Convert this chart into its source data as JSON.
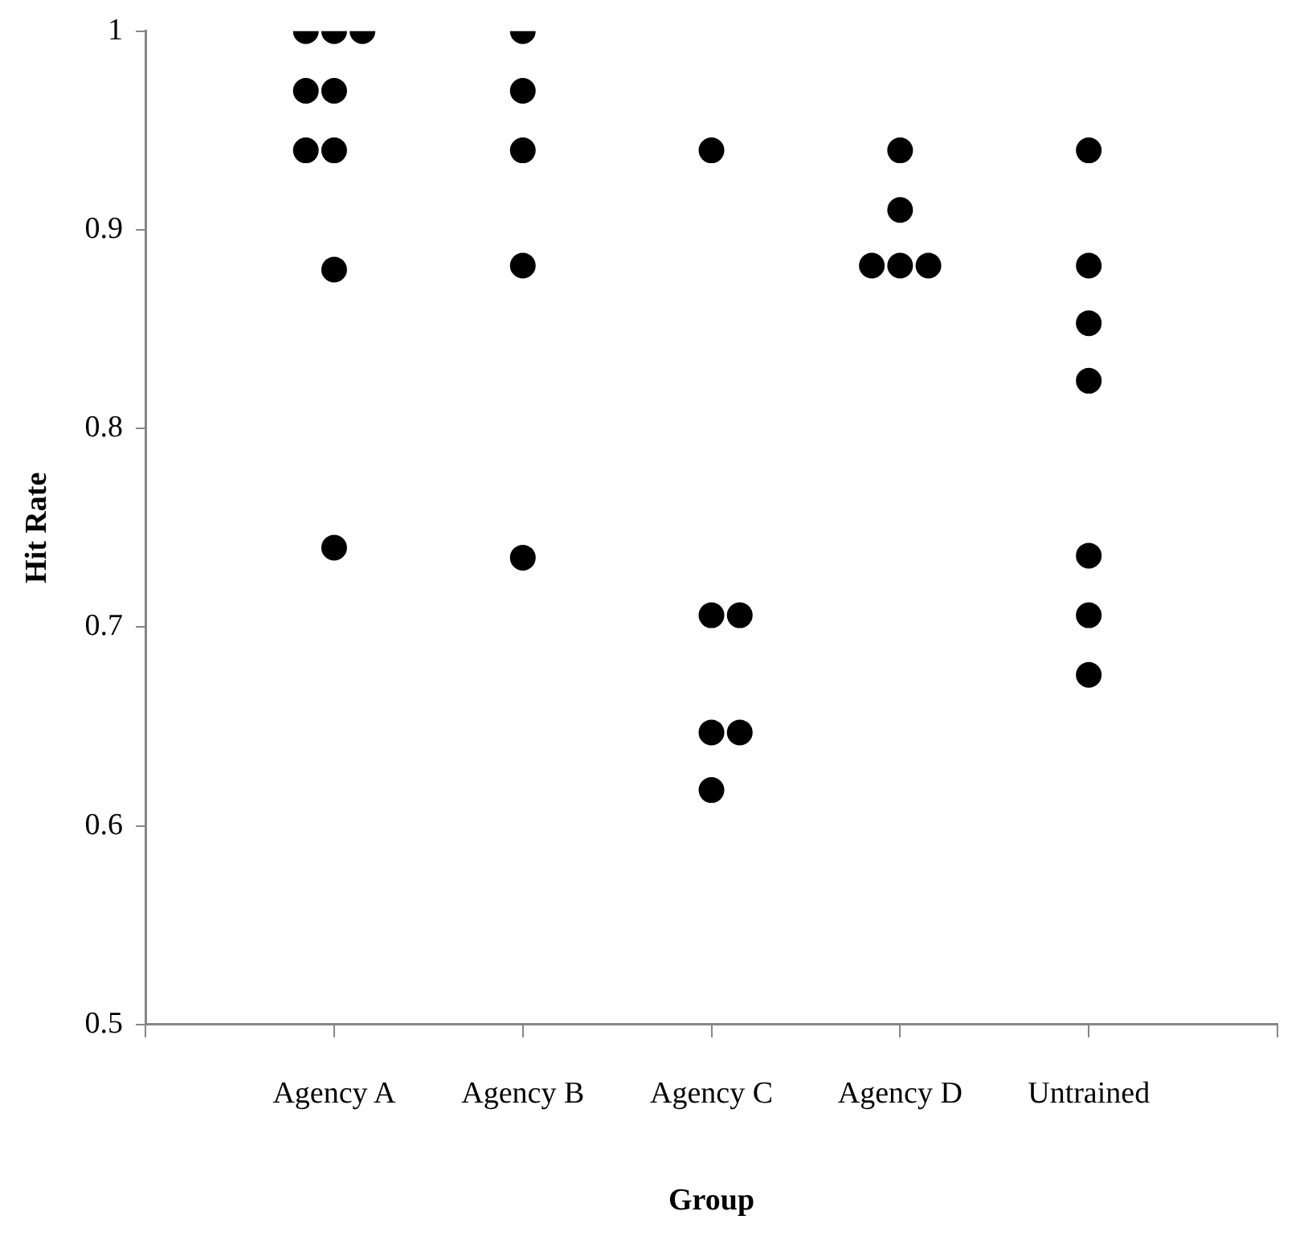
{
  "chart_data": {
    "type": "scatter",
    "xlabel": "Group",
    "ylabel": "Hit Rate",
    "categories": [
      "Agency A",
      "Agency B",
      "Agency C",
      "Agency D",
      "Untrained"
    ],
    "series": [
      {
        "type": "scatter",
        "color": "#000000",
        "x": [
          "Agency A",
          "Agency A",
          "Agency A",
          "Agency D"
        ],
        "values": [
          1,
          0.97,
          0.94,
          0.882
        ]
      },
      {
        "type": "scatter",
        "color": "#000000",
        "x": [
          "Agency A",
          "Agency A",
          "Agency A",
          "Agency A",
          "Agency A",
          "Agency B",
          "Agency B",
          "Agency B",
          "Agency B",
          "Agency B",
          "Agency C",
          "Agency C",
          "Agency C",
          "Agency C",
          "Agency D",
          "Agency D",
          "Agency D",
          "Untrained",
          "Untrained",
          "Untrained",
          "Untrained",
          "Untrained",
          "Untrained",
          "Untrained"
        ],
        "values": [
          1,
          0.97,
          0.94,
          0.88,
          0.74,
          1,
          0.97,
          0.94,
          0.882,
          0.735,
          0.94,
          0.706,
          0.647,
          0.618,
          0.94,
          0.91,
          0.882,
          0.94,
          0.882,
          0.853,
          0.824,
          0.736,
          0.706,
          0.676
        ]
      },
      {
        "type": "scatter",
        "color": "#000000",
        "x": [
          "Agency A",
          "Agency C",
          "Agency C",
          "Agency D"
        ],
        "values": [
          1,
          0.706,
          0.647,
          0.882
        ]
      }
    ],
    "marker": "circle",
    "ylim": [
      0.5,
      1
    ],
    "yticks": [
      0.5,
      0.6,
      0.7,
      0.8,
      0.9,
      1
    ]
  }
}
